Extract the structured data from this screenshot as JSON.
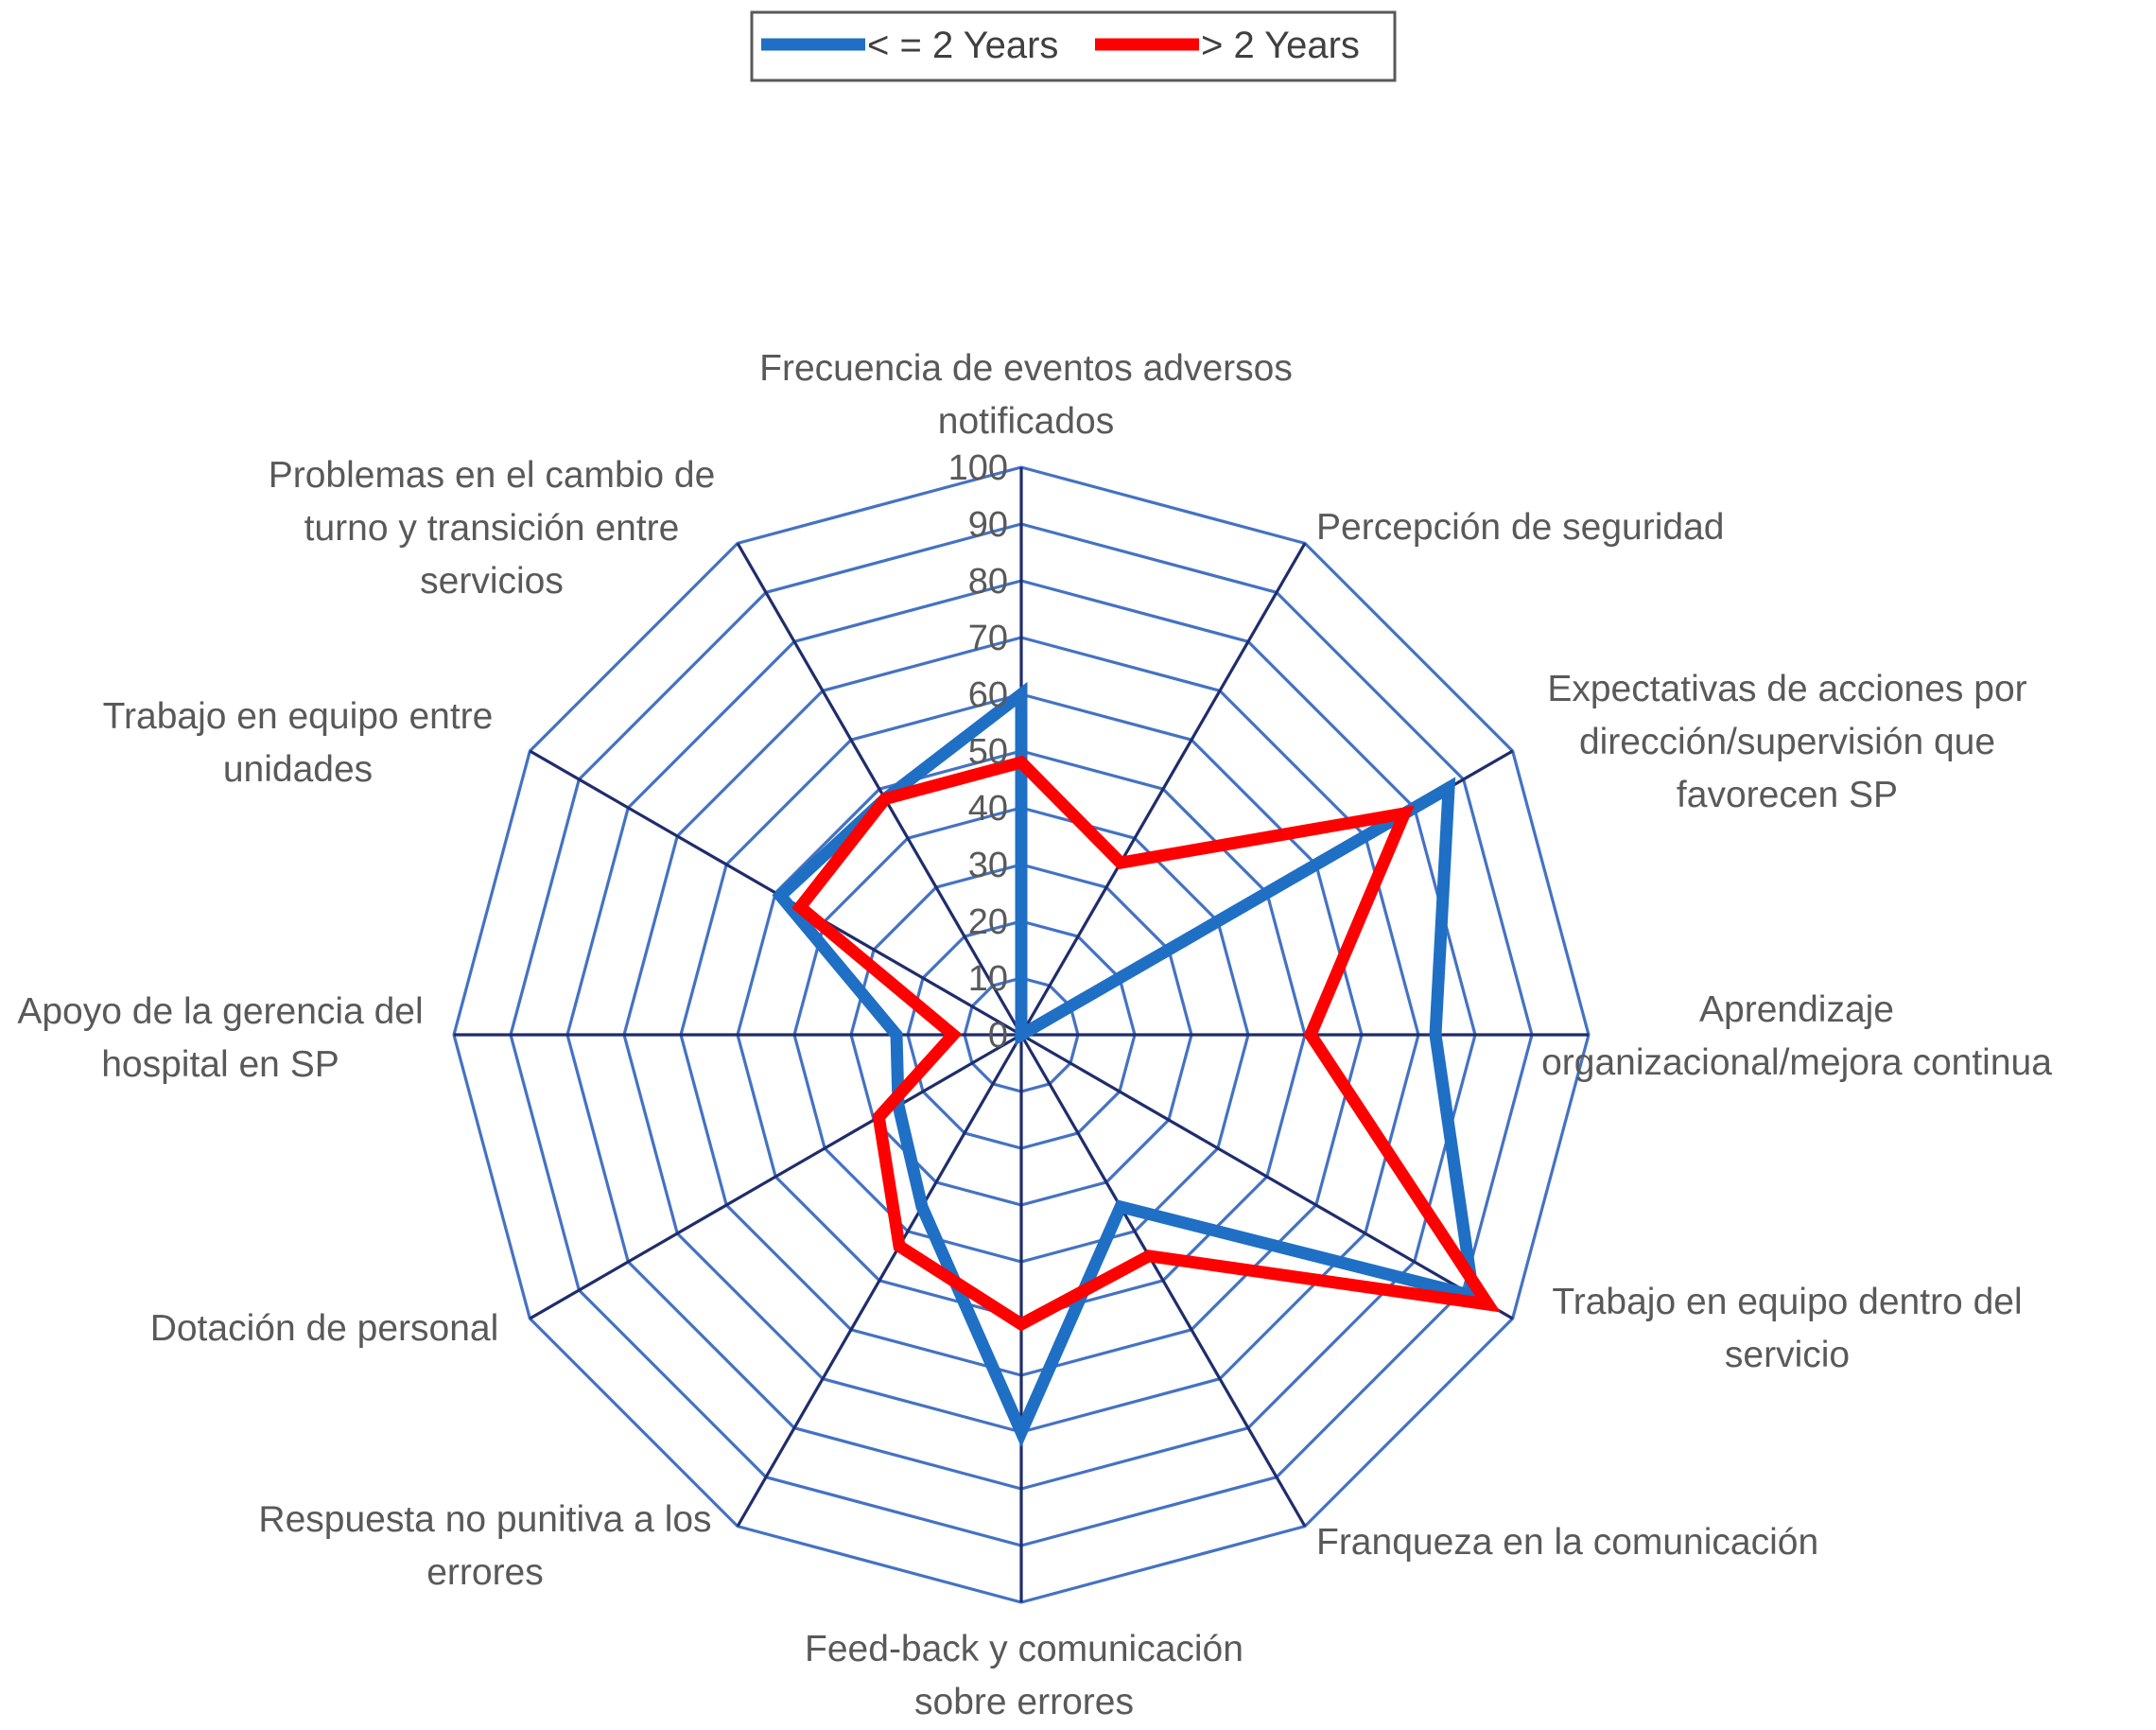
{
  "chart_data": {
    "type": "radar",
    "title": "",
    "rlim": [
      0,
      100
    ],
    "ticks": [
      0,
      10,
      20,
      30,
      40,
      50,
      60,
      70,
      80,
      90,
      100
    ],
    "grid": true,
    "legend_position": "top",
    "categories": [
      "Frecuencia de eventos adversos notificados",
      "Percepción de seguridad",
      "Expectativas de acciones por dirección/supervisión que favorecen SP",
      "Aprendizaje organizacional/mejora continua",
      "Trabajo en equipo dentro del servicio",
      "Franqueza en la comunicación",
      "Feed-back y comunicación sobre errores",
      "Respuesta no punitiva a los errores",
      "Dotación de personal",
      "Apoyo de la gerencia del hospital en SP",
      "Trabajo en equipo entre unidades",
      "Problemas en el cambio de turno y transición entre servicios"
    ],
    "category_lines": [
      [
        "Frecuencia de eventos adversos",
        "notificados"
      ],
      [
        "Percepción de seguridad"
      ],
      [
        "Expectativas de acciones por",
        "dirección/supervisión que",
        "favorecen SP"
      ],
      [
        "Aprendizaje",
        "organizacional/mejora continua"
      ],
      [
        "Trabajo en equipo dentro del",
        "servicio"
      ],
      [
        "Franqueza en la comunicación"
      ],
      [
        "Feed-back y comunicación",
        "sobre errores"
      ],
      [
        "Respuesta no punitiva a los",
        "errores"
      ],
      [
        "Dotación de personal"
      ],
      [
        "Apoyo de la gerencia del",
        "hospital en SP"
      ],
      [
        "Trabajo en equipo entre",
        "unidades"
      ],
      [
        "Problemas en el cambio de",
        "turno y transición entre",
        "servicios"
      ]
    ],
    "series": [
      {
        "name": "< = 2 Years",
        "color": "#1f6fc5",
        "values": [
          60,
          0,
          87,
          73,
          92,
          35,
          70,
          35,
          25,
          22,
          49,
          48
        ]
      },
      {
        "name": "> 2 Years",
        "color": "#ff0000",
        "values": [
          48,
          35,
          78,
          51,
          95,
          45,
          51,
          43,
          29,
          12,
          45,
          48
        ]
      }
    ]
  }
}
